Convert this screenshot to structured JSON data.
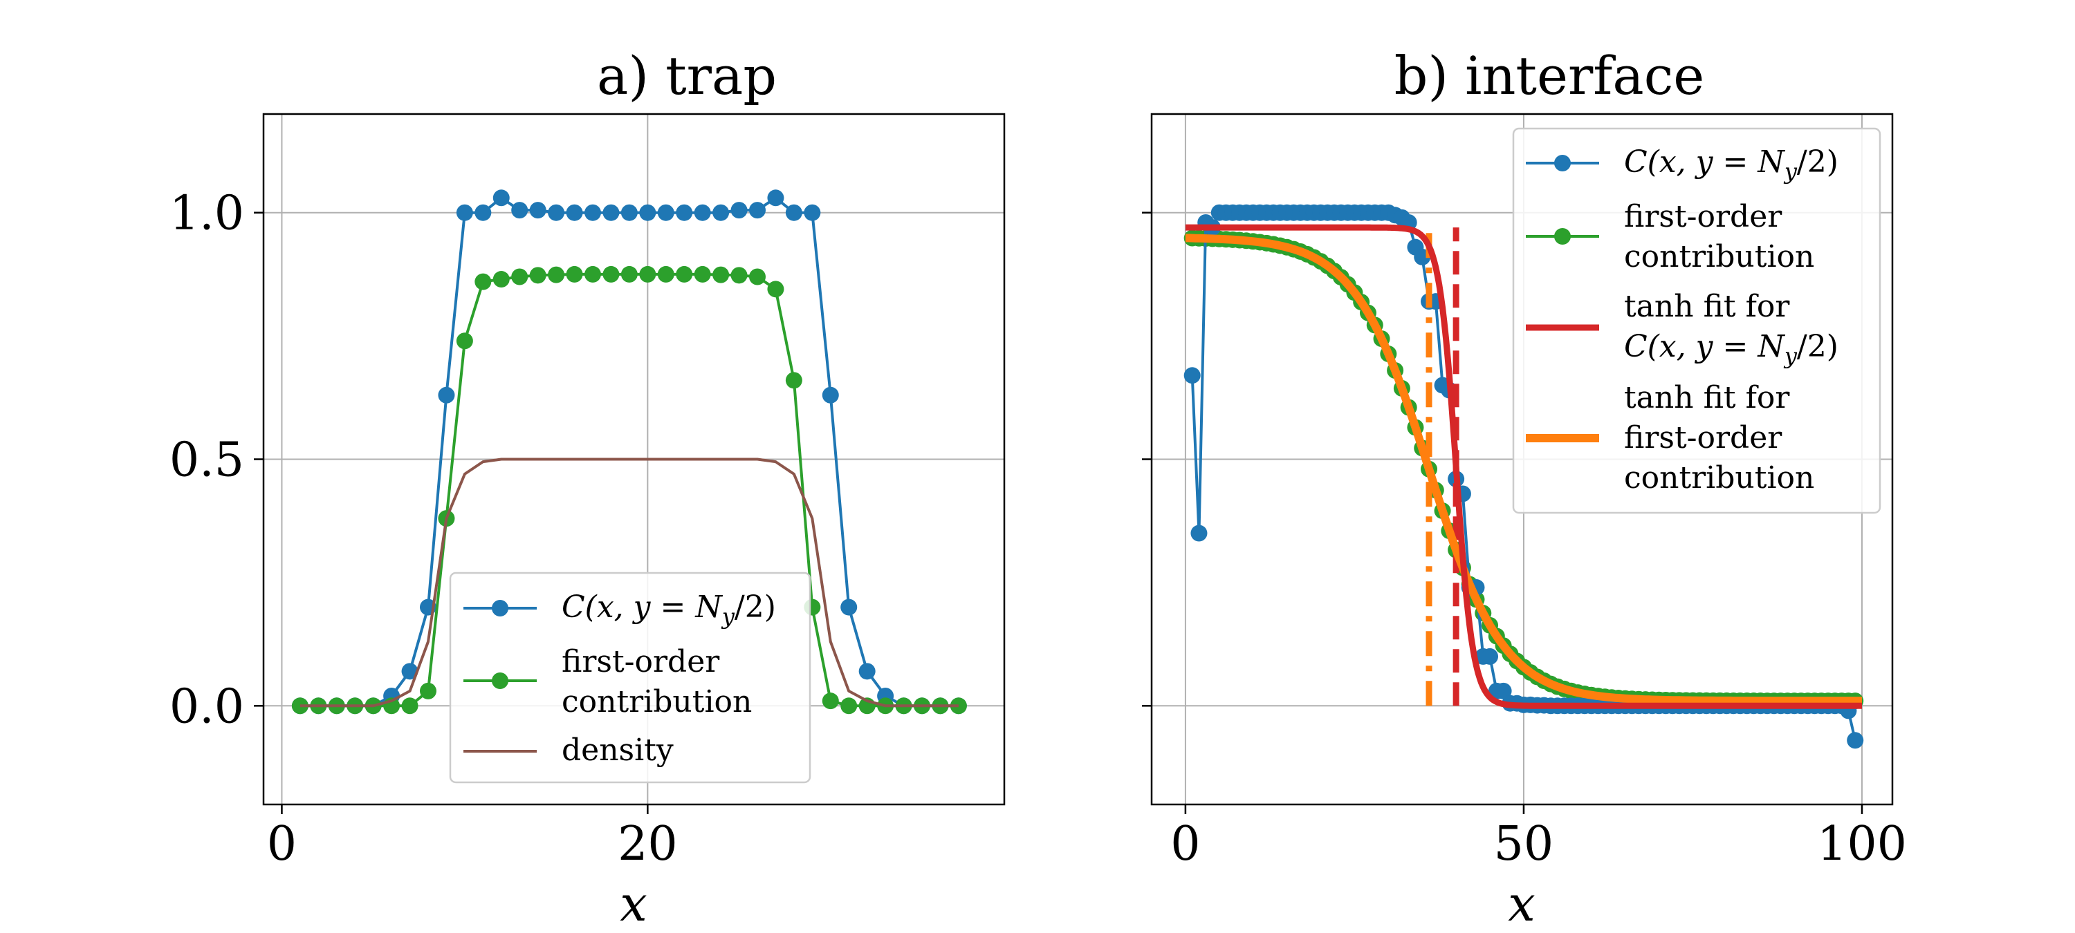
{
  "chart_data": [
    {
      "type": "line",
      "title": "a) trap",
      "xlabel": "x",
      "ylabel": "",
      "xlim": [
        -1,
        39.5
      ],
      "ylim": [
        -0.2,
        1.2
      ],
      "xticks": [
        0,
        20
      ],
      "xtick_labels": [
        "0",
        "20"
      ],
      "yticks": [
        0.0,
        0.5,
        1.0
      ],
      "ytick_labels": [
        "0.0",
        "0.5",
        "1.0"
      ],
      "grid": true,
      "legend_position": "lower-center",
      "series": [
        {
          "name": "C(x, y = N_y/2)",
          "legend_parts": {
            "main": "C(x, y = N",
            "sub": "y",
            "tail": "/2)"
          },
          "color": "#1f77b4",
          "marker": "o",
          "x": [
            1,
            2,
            3,
            4,
            5,
            6,
            7,
            8,
            9,
            10,
            11,
            12,
            13,
            14,
            15,
            16,
            17,
            18,
            19,
            20,
            21,
            22,
            23,
            24,
            25,
            26,
            27,
            28,
            29,
            30,
            31,
            32,
            33,
            34,
            35,
            36,
            37
          ],
          "y": [
            0,
            0,
            0,
            0,
            0,
            0.02,
            0.07,
            0.2,
            0.63,
            1.0,
            1.0,
            1.03,
            1.005,
            1.005,
            1.0,
            1.0,
            1.0,
            1.0,
            1.0,
            1.0,
            1.0,
            1.0,
            1.0,
            1.0,
            1.005,
            1.005,
            1.03,
            1.0,
            1.0,
            0.63,
            0.2,
            0.07,
            0.02,
            0,
            0,
            0,
            0
          ]
        },
        {
          "name": "first-order contribution",
          "legend_lines": [
            "first-order",
            "contribution"
          ],
          "color": "#2ca02c",
          "marker": "o",
          "x": [
            1,
            2,
            3,
            4,
            5,
            6,
            7,
            8,
            9,
            10,
            11,
            12,
            13,
            14,
            15,
            16,
            17,
            18,
            19,
            20,
            21,
            22,
            23,
            24,
            25,
            26,
            27,
            28,
            29,
            30,
            31,
            32,
            33,
            34,
            35,
            36,
            37
          ],
          "y": [
            0,
            0,
            0,
            0,
            0,
            0,
            0,
            0.03,
            0.38,
            0.74,
            0.86,
            0.865,
            0.87,
            0.873,
            0.874,
            0.875,
            0.875,
            0.875,
            0.875,
            0.875,
            0.875,
            0.875,
            0.875,
            0.874,
            0.873,
            0.87,
            0.845,
            0.66,
            0.2,
            0.01,
            0,
            0,
            0,
            0,
            0,
            0,
            0
          ]
        },
        {
          "name": "density",
          "color": "#8c564b",
          "marker": "none",
          "x": [
            1,
            2,
            3,
            4,
            5,
            6,
            7,
            8,
            9,
            10,
            11,
            12,
            13,
            14,
            15,
            16,
            17,
            18,
            19,
            20,
            21,
            22,
            23,
            24,
            25,
            26,
            27,
            28,
            29,
            30,
            31,
            32,
            33,
            34,
            35,
            36,
            37
          ],
          "y": [
            0,
            0,
            0,
            0,
            0,
            0.01,
            0.03,
            0.13,
            0.38,
            0.47,
            0.495,
            0.5,
            0.5,
            0.5,
            0.5,
            0.5,
            0.5,
            0.5,
            0.5,
            0.5,
            0.5,
            0.5,
            0.5,
            0.5,
            0.5,
            0.5,
            0.495,
            0.47,
            0.38,
            0.13,
            0.03,
            0.01,
            0,
            0,
            0,
            0,
            0
          ]
        }
      ]
    },
    {
      "type": "line",
      "title": "b) interface",
      "xlabel": "x",
      "ylabel": "",
      "xlim": [
        -5,
        104.5
      ],
      "ylim": [
        -0.2,
        1.2
      ],
      "xticks": [
        0,
        50,
        100
      ],
      "xtick_labels": [
        "0",
        "50",
        "100"
      ],
      "yticks": [
        0.0,
        0.5,
        1.0
      ],
      "grid": true,
      "legend_position": "upper-right",
      "series": [
        {
          "name": "C(x, y = N_y/2)",
          "legend_parts": {
            "main": "C(x, y = N",
            "sub": "y",
            "tail": "/2)"
          },
          "color": "#1f77b4",
          "marker": "o",
          "x": [
            1,
            2,
            3,
            4,
            5,
            6,
            7,
            8,
            9,
            10,
            11,
            12,
            13,
            14,
            15,
            16,
            17,
            18,
            19,
            20,
            21,
            22,
            23,
            24,
            25,
            26,
            27,
            28,
            29,
            30,
            31,
            32,
            33,
            34,
            35,
            36,
            37,
            38,
            39,
            40,
            41,
            42,
            43,
            44,
            45,
            46,
            47,
            48,
            49,
            50,
            51,
            52,
            53,
            54,
            55,
            56,
            57,
            58,
            59,
            60,
            61,
            62,
            63,
            64,
            65,
            66,
            67,
            68,
            69,
            70,
            71,
            72,
            73,
            74,
            75,
            76,
            77,
            78,
            79,
            80,
            81,
            82,
            83,
            84,
            85,
            86,
            87,
            88,
            89,
            90,
            91,
            92,
            93,
            94,
            95,
            96,
            97,
            98,
            99
          ],
          "y": [
            0.67,
            0.35,
            0.98,
            0.97,
            1.0,
            1.0,
            1.0,
            1.0,
            1.0,
            1.0,
            1.0,
            1.0,
            1.0,
            1.0,
            1.0,
            1.0,
            1.0,
            1.0,
            1.0,
            1.0,
            1.0,
            1.0,
            1.0,
            1.0,
            1.0,
            1.0,
            1.0,
            1.0,
            1.0,
            1.0,
            0.995,
            0.99,
            0.98,
            0.93,
            0.91,
            0.82,
            0.82,
            0.65,
            0.64,
            0.46,
            0.43,
            0.24,
            0.24,
            0.1,
            0.1,
            0.03,
            0.03,
            0.005,
            0.005,
            0.002,
            0.002,
            0.001,
            0.001,
            0,
            0,
            0,
            0,
            0,
            0,
            0,
            0,
            0,
            0,
            0,
            0,
            0,
            0,
            0,
            0,
            0,
            0,
            0,
            0,
            0,
            0,
            0,
            0,
            0,
            0,
            0,
            0,
            0,
            0,
            0,
            0,
            0,
            0,
            0,
            0,
            0,
            0,
            0,
            0,
            0,
            0,
            0,
            0,
            -0.01,
            -0.07
          ]
        },
        {
          "name": "first-order contribution",
          "legend_lines": [
            "first-order",
            "contribution"
          ],
          "color": "#2ca02c",
          "marker": "o",
          "fit_center": 36,
          "fit_width": 11,
          "fit_upper": 0.95,
          "fit_lower": 0.01,
          "x_from": 1,
          "x_to": 99
        },
        {
          "name": "tanh fit for C(x, y = N_y/2)",
          "legend_lines": [
            "tanh fit for"
          ],
          "legend_parts": {
            "main": "C(x, y = N",
            "sub": "y",
            "tail": "/2)"
          },
          "color": "#d62728",
          "marker": "none",
          "fit_center": 40,
          "fit_width": 2.5,
          "fit_upper": 0.97,
          "fit_lower": 0.0,
          "x_from": 0,
          "x_to": 100,
          "vline_x": 40,
          "vline_style": "dashed"
        },
        {
          "name": "tanh fit for first-order contribution",
          "legend_lines": [
            "tanh fit for",
            "first-order",
            "contribution"
          ],
          "color": "#ff7f0e",
          "marker": "none",
          "fit_center": 36,
          "fit_width": 11,
          "fit_upper": 0.95,
          "fit_lower": 0.01,
          "x_from": 0,
          "x_to": 100,
          "vline_x": 36,
          "vline_style": "dashdot"
        }
      ]
    }
  ]
}
